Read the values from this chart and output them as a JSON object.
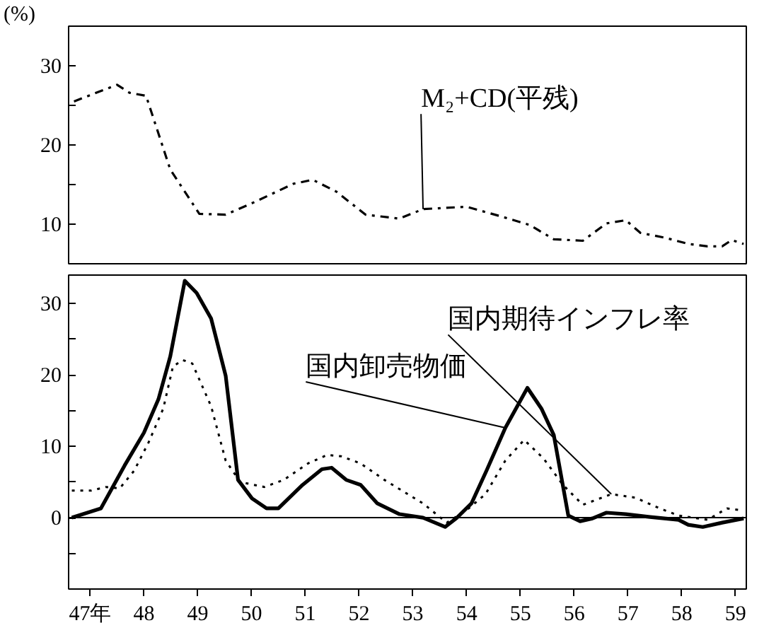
{
  "chart_data": [
    {
      "type": "line",
      "ylabel": "(%)",
      "xlim": [
        47.1,
        59.7
      ],
      "ylim": [
        5,
        35
      ],
      "yticks": [
        {
          "value": 10,
          "label": "10"
        },
        {
          "value": 15,
          "label": null
        },
        {
          "value": 20,
          "label": "20"
        },
        {
          "value": 25,
          "label": null
        },
        {
          "value": 30,
          "label": "30"
        }
      ],
      "tick_labels": "y",
      "grid": false,
      "series": [
        {
          "name": "M₂+CD(平残)",
          "color": "#000000",
          "line_style": "dashdot",
          "x": [
            47.2,
            48.0,
            48.23,
            48.54,
            48.99,
            49.53,
            50.02,
            50.56,
            51.28,
            51.64,
            52.08,
            52.62,
            53.25,
            53.69,
            54.5,
            55.13,
            55.67,
            56.12,
            56.66,
            57.1,
            57.46,
            57.73,
            58.18,
            58.63,
            58.98,
            59.25,
            59.43,
            59.65
          ],
          "values": [
            25.5,
            27.6,
            26.6,
            26.2,
            16.9,
            11.3,
            11.2,
            12.8,
            15.1,
            15.6,
            14.1,
            11.2,
            10.7,
            11.9,
            12.2,
            11.0,
            9.9,
            8.1,
            7.9,
            10.1,
            10.5,
            8.9,
            8.3,
            7.5,
            7.2,
            7.2,
            8.0,
            7.5
          ]
        }
      ]
    },
    {
      "type": "line",
      "xlim": [
        47.1,
        59.7
      ],
      "ylim": [
        -10,
        34
      ],
      "yticks": [
        {
          "value": -5,
          "label": null
        },
        0,
        {
          "value": 5,
          "label": null
        },
        10,
        {
          "value": 15,
          "label": null
        },
        20,
        {
          "value": 25,
          "label": null
        },
        30
      ],
      "xticks": [
        {
          "value": 47.5,
          "label": "47年"
        },
        {
          "value": 48.5,
          "label": "48"
        },
        {
          "value": 49.5,
          "label": "49"
        },
        {
          "value": 50.5,
          "label": "50"
        },
        {
          "value": 51.5,
          "label": "51"
        },
        {
          "value": 52.5,
          "label": "52"
        },
        {
          "value": 53.5,
          "label": "53"
        },
        {
          "value": 54.5,
          "label": "54"
        },
        {
          "value": 55.5,
          "label": "55"
        },
        {
          "value": 56.5,
          "label": "56"
        },
        {
          "value": 57.5,
          "label": "57"
        },
        {
          "value": 58.5,
          "label": "58"
        },
        {
          "value": 59.5,
          "label": "59"
        }
      ],
      "grid": false,
      "ref_lines": [
        {
          "axis": "y",
          "value": 0,
          "color": "#000000",
          "line_style": "solid"
        }
      ],
      "series": [
        {
          "name": "国内卸売物価",
          "color": "#000000",
          "line_style": "solid",
          "x": [
            47.16,
            47.7,
            48.14,
            48.5,
            48.77,
            48.99,
            49.26,
            49.48,
            49.75,
            50.02,
            50.25,
            50.51,
            50.78,
            51.0,
            51.45,
            51.81,
            51.99,
            52.26,
            52.53,
            52.84,
            53.25,
            53.69,
            54.1,
            54.32,
            54.59,
            54.87,
            55.22,
            55.63,
            55.89,
            56.12,
            56.39,
            56.61,
            56.84,
            57.1,
            57.46,
            57.91,
            58.44,
            58.62,
            58.89,
            59.25,
            59.65
          ],
          "values": [
            0,
            1.3,
            7.3,
            11.9,
            16.6,
            22.6,
            33.2,
            31.5,
            27.9,
            19.9,
            5.3,
            2.7,
            1.3,
            1.3,
            4.6,
            6.8,
            7.0,
            5.3,
            4.6,
            2.0,
            0.5,
            0,
            -1.3,
            0,
            2.0,
            6.6,
            12.6,
            18.2,
            15.3,
            11.6,
            0.3,
            -0.5,
            -0.1,
            0.7,
            0.5,
            0.1,
            -0.3,
            -1.0,
            -1.3,
            -0.7,
            -0.1
          ]
        },
        {
          "name": "国内期待インフレ率",
          "color": "#000000",
          "line_style": "dotted",
          "x": [
            47.16,
            47.52,
            47.79,
            48.05,
            48.32,
            48.59,
            48.86,
            49.04,
            49.22,
            49.4,
            49.75,
            50.02,
            50.29,
            50.74,
            51.1,
            51.55,
            51.91,
            52.17,
            52.53,
            52.97,
            53.69,
            54.13,
            54.49,
            54.85,
            55.22,
            55.57,
            55.93,
            56.29,
            56.66,
            57.19,
            57.64,
            58.09,
            58.44,
            58.98,
            59.34,
            59.65
          ],
          "values": [
            3.8,
            3.8,
            4.3,
            4.1,
            6.6,
            10.6,
            15.3,
            21.2,
            22.1,
            21.6,
            15.6,
            8.0,
            5.0,
            4.3,
            5.3,
            7.6,
            8.8,
            8.6,
            7.6,
            5.3,
            2.0,
            -0.7,
            1.0,
            3.3,
            8.0,
            10.9,
            8.3,
            4.6,
            1.8,
            3.3,
            2.8,
            1.3,
            0.3,
            -0.3,
            1.3,
            1.0
          ]
        }
      ]
    }
  ]
}
